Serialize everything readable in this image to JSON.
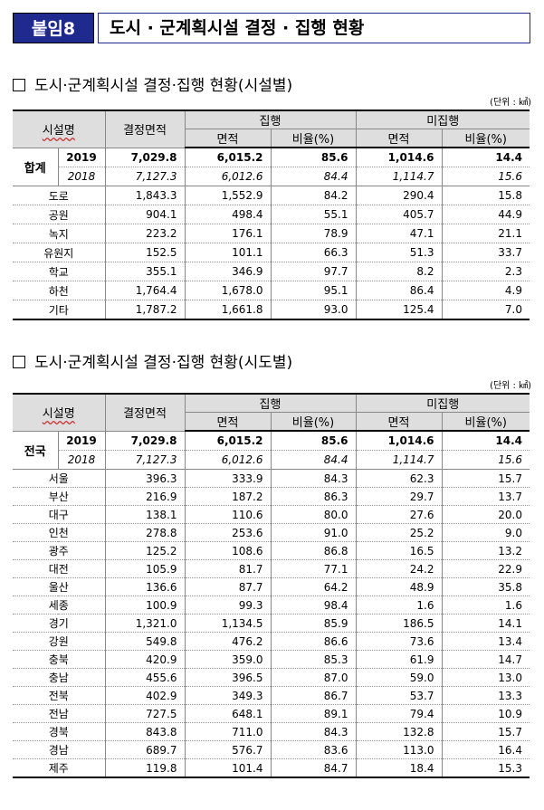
{
  "header": {
    "badge": "붙임8",
    "title": "도시 · 군계획시설 결정 · 집행 현황"
  },
  "section1": {
    "title": "도시·군계획시설 결정·집행 현황(시설별)",
    "unit": "(단위 : ㎢)",
    "total_label": "합계",
    "total": [
      {
        "year": "2019",
        "decided": "7,029.8",
        "exec_area": "6,015.2",
        "exec_ratio": "85.6",
        "unexec_area": "1,014.6",
        "unexec_ratio": "14.4"
      },
      {
        "year": "2018",
        "decided": "7,127.3",
        "exec_area": "6,012.6",
        "exec_ratio": "84.4",
        "unexec_area": "1,114.7",
        "unexec_ratio": "15.6"
      }
    ],
    "rows": [
      {
        "name": "도로",
        "decided": "1,843.3",
        "exec_area": "1,552.9",
        "exec_ratio": "84.2",
        "unexec_area": "290.4",
        "unexec_ratio": "15.8"
      },
      {
        "name": "공원",
        "decided": "904.1",
        "exec_area": "498.4",
        "exec_ratio": "55.1",
        "unexec_area": "405.7",
        "unexec_ratio": "44.9"
      },
      {
        "name": "녹지",
        "decided": "223.2",
        "exec_area": "176.1",
        "exec_ratio": "78.9",
        "unexec_area": "47.1",
        "unexec_ratio": "21.1"
      },
      {
        "name": "유원지",
        "decided": "152.5",
        "exec_area": "101.1",
        "exec_ratio": "66.3",
        "unexec_area": "51.3",
        "unexec_ratio": "33.7"
      },
      {
        "name": "학교",
        "decided": "355.1",
        "exec_area": "346.9",
        "exec_ratio": "97.7",
        "unexec_area": "8.2",
        "unexec_ratio": "2.3"
      },
      {
        "name": "하천",
        "decided": "1,764.4",
        "exec_area": "1,678.0",
        "exec_ratio": "95.1",
        "unexec_area": "86.4",
        "unexec_ratio": "4.9"
      },
      {
        "name": "기타",
        "decided": "1,787.2",
        "exec_area": "1,661.8",
        "exec_ratio": "93.0",
        "unexec_area": "125.4",
        "unexec_ratio": "7.0"
      }
    ]
  },
  "section2": {
    "title": "도시·군계획시설 결정·집행 현황(시도별)",
    "unit": "(단위 : ㎢)",
    "total_label": "전국",
    "total": [
      {
        "year": "2019",
        "decided": "7,029.8",
        "exec_area": "6,015.2",
        "exec_ratio": "85.6",
        "unexec_area": "1,014.6",
        "unexec_ratio": "14.4"
      },
      {
        "year": "2018",
        "decided": "7,127.3",
        "exec_area": "6,012.6",
        "exec_ratio": "84.4",
        "unexec_area": "1,114.7",
        "unexec_ratio": "15.6"
      }
    ],
    "rows": [
      {
        "name": "서울",
        "decided": "396.3",
        "exec_area": "333.9",
        "exec_ratio": "84.3",
        "unexec_area": "62.3",
        "unexec_ratio": "15.7"
      },
      {
        "name": "부산",
        "decided": "216.9",
        "exec_area": "187.2",
        "exec_ratio": "86.3",
        "unexec_area": "29.7",
        "unexec_ratio": "13.7"
      },
      {
        "name": "대구",
        "decided": "138.1",
        "exec_area": "110.6",
        "exec_ratio": "80.0",
        "unexec_area": "27.6",
        "unexec_ratio": "20.0"
      },
      {
        "name": "인천",
        "decided": "278.8",
        "exec_area": "253.6",
        "exec_ratio": "91.0",
        "unexec_area": "25.2",
        "unexec_ratio": "9.0"
      },
      {
        "name": "광주",
        "decided": "125.2",
        "exec_area": "108.6",
        "exec_ratio": "86.8",
        "unexec_area": "16.5",
        "unexec_ratio": "13.2"
      },
      {
        "name": "대전",
        "decided": "105.9",
        "exec_area": "81.7",
        "exec_ratio": "77.1",
        "unexec_area": "24.2",
        "unexec_ratio": "22.9"
      },
      {
        "name": "울산",
        "decided": "136.6",
        "exec_area": "87.7",
        "exec_ratio": "64.2",
        "unexec_area": "48.9",
        "unexec_ratio": "35.8"
      },
      {
        "name": "세종",
        "decided": "100.9",
        "exec_area": "99.3",
        "exec_ratio": "98.4",
        "unexec_area": "1.6",
        "unexec_ratio": "1.6"
      },
      {
        "name": "경기",
        "decided": "1,321.0",
        "exec_area": "1,134.5",
        "exec_ratio": "85.9",
        "unexec_area": "186.5",
        "unexec_ratio": "14.1"
      },
      {
        "name": "강원",
        "decided": "549.8",
        "exec_area": "476.2",
        "exec_ratio": "86.6",
        "unexec_area": "73.6",
        "unexec_ratio": "13.4"
      },
      {
        "name": "충북",
        "decided": "420.9",
        "exec_area": "359.0",
        "exec_ratio": "85.3",
        "unexec_area": "61.9",
        "unexec_ratio": "14.7"
      },
      {
        "name": "충남",
        "decided": "455.6",
        "exec_area": "396.5",
        "exec_ratio": "87.0",
        "unexec_area": "59.0",
        "unexec_ratio": "13.0"
      },
      {
        "name": "전북",
        "decided": "402.9",
        "exec_area": "349.3",
        "exec_ratio": "86.7",
        "unexec_area": "53.7",
        "unexec_ratio": "13.3"
      },
      {
        "name": "전남",
        "decided": "727.5",
        "exec_area": "648.1",
        "exec_ratio": "89.1",
        "unexec_area": "79.4",
        "unexec_ratio": "10.9"
      },
      {
        "name": "경북",
        "decided": "843.8",
        "exec_area": "711.0",
        "exec_ratio": "84.3",
        "unexec_area": "132.8",
        "unexec_ratio": "15.7"
      },
      {
        "name": "경남",
        "decided": "689.7",
        "exec_area": "576.7",
        "exec_ratio": "83.6",
        "unexec_area": "113.0",
        "unexec_ratio": "16.4"
      },
      {
        "name": "제주",
        "decided": "119.8",
        "exec_area": "101.4",
        "exec_ratio": "84.7",
        "unexec_area": "18.4",
        "unexec_ratio": "15.3"
      }
    ]
  },
  "columns": {
    "facility": "시설명",
    "decided": "결정면적",
    "executed": "집행",
    "unexecuted": "미집행",
    "area": "면적",
    "ratio": "비율(%)"
  },
  "colors": {
    "badge_bg": "#1f2a8f",
    "header_bg": "#dedede"
  }
}
